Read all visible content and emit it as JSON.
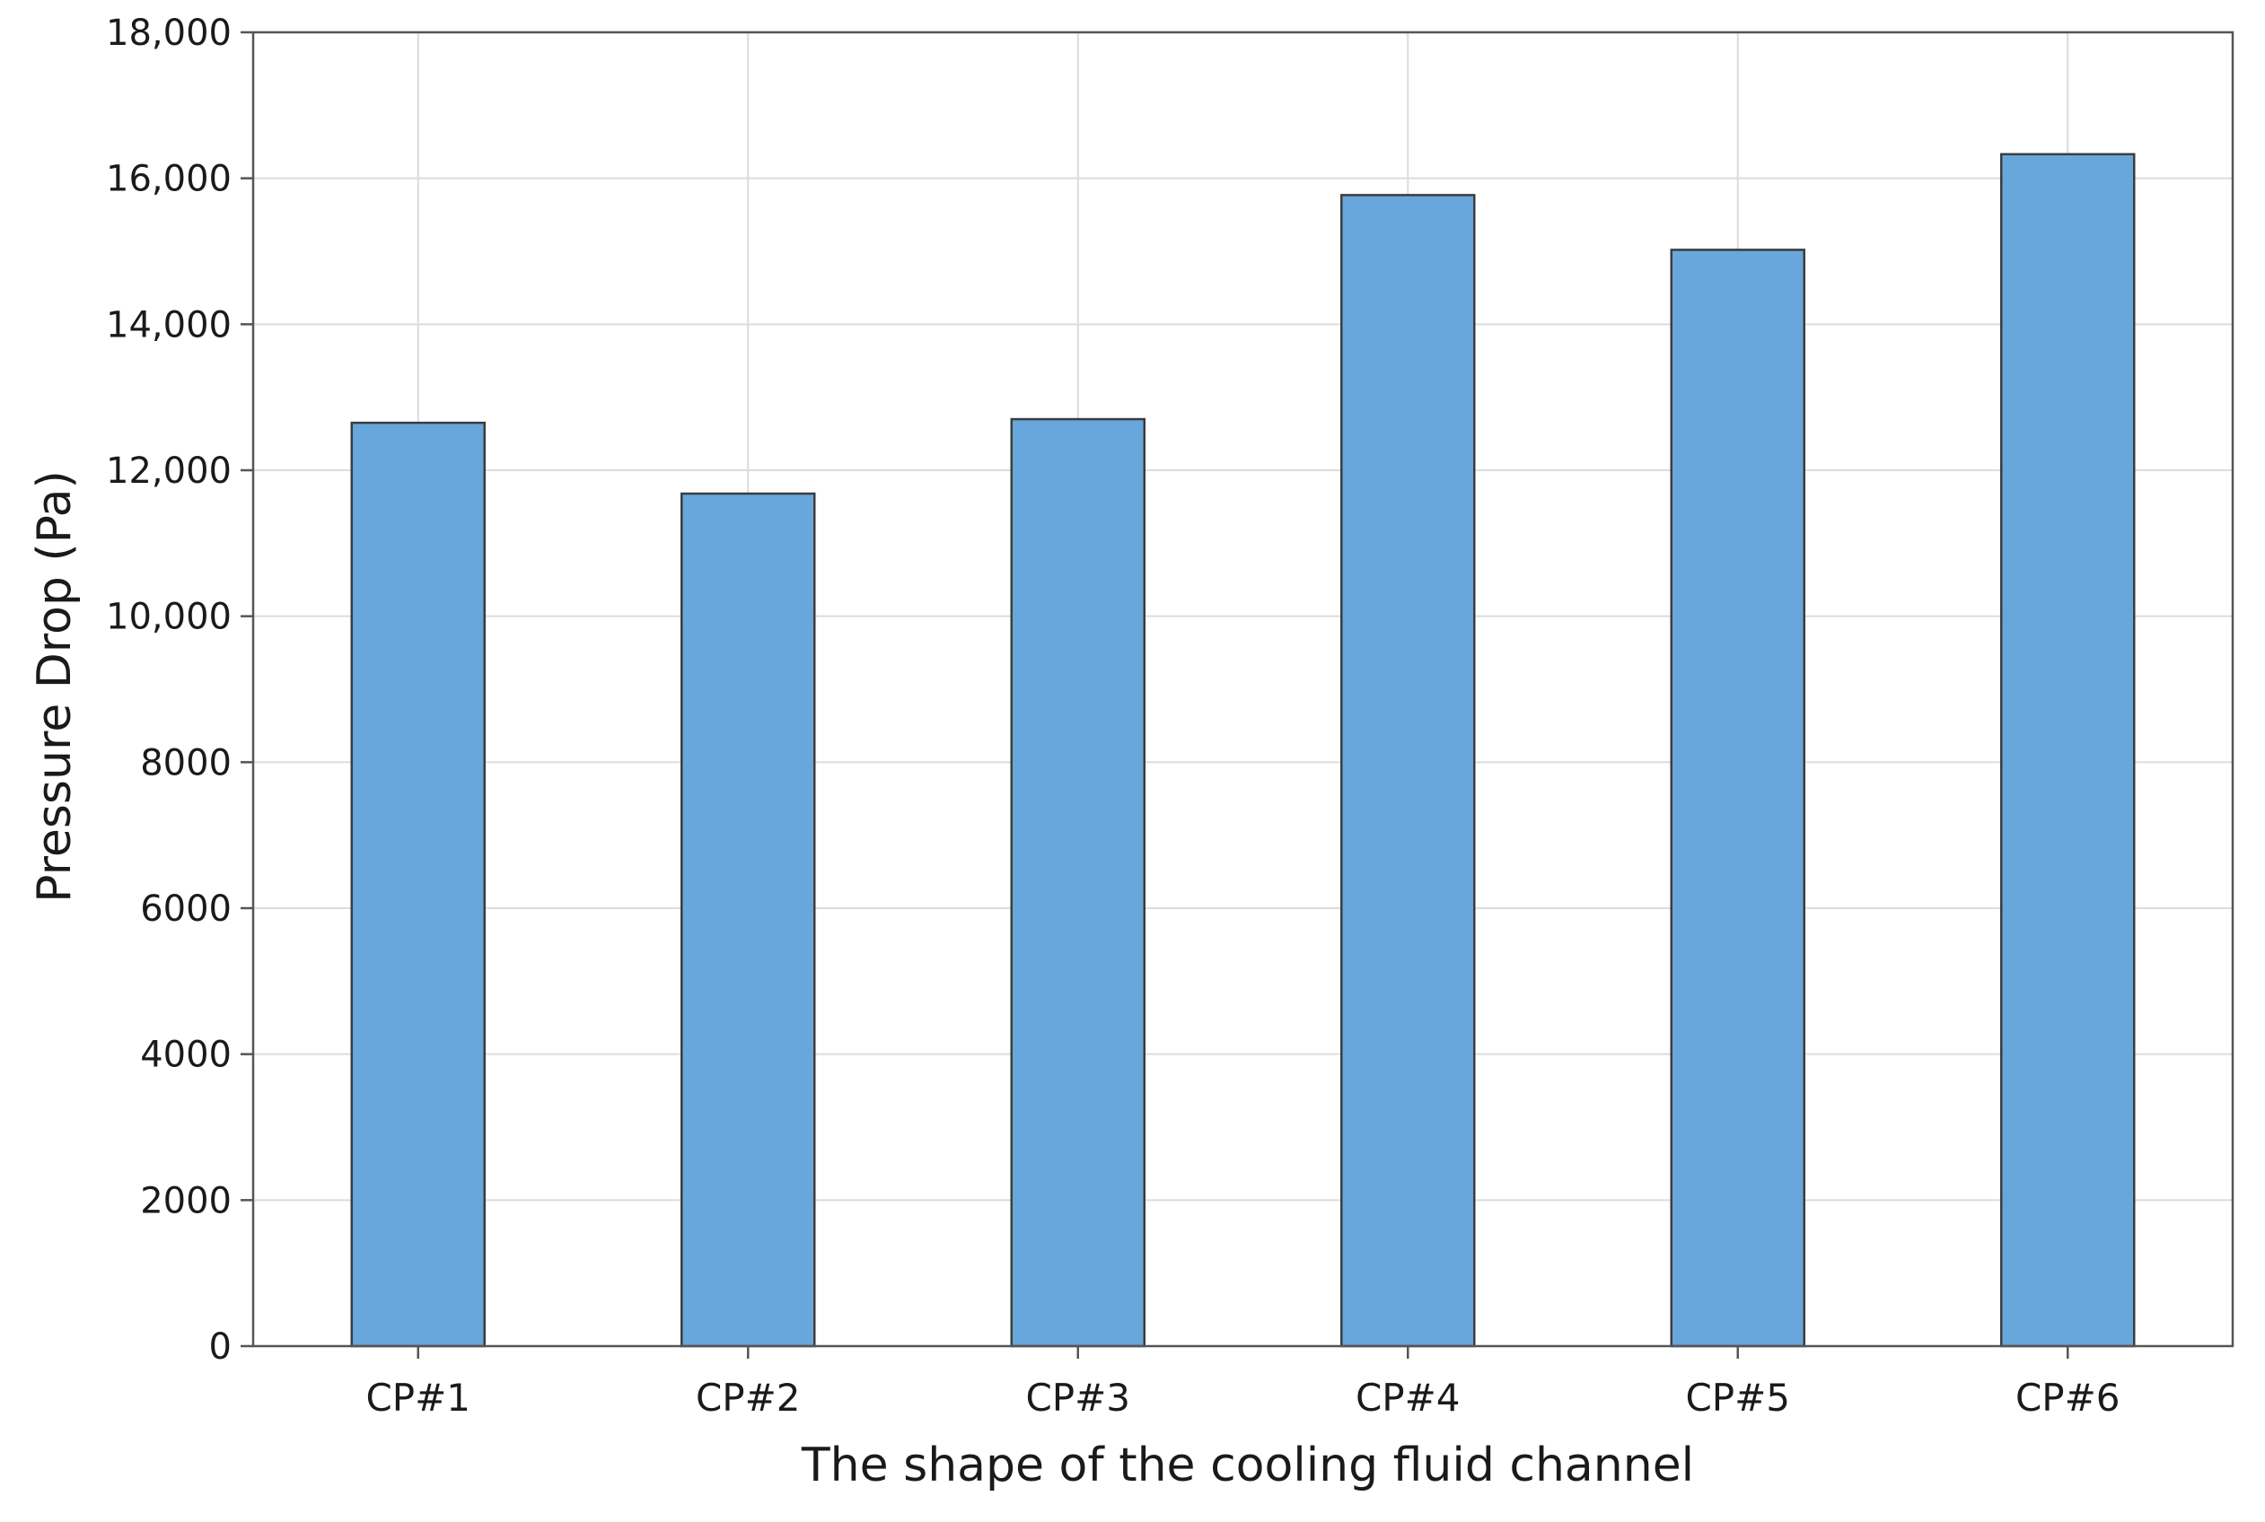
{
  "chart_data": {
    "type": "bar",
    "title": "",
    "xlabel": "The shape of the cooling fluid channel",
    "ylabel": "Pressure Drop (Pa)",
    "categories": [
      "CP#1",
      "CP#2",
      "CP#3",
      "CP#4",
      "CP#5",
      "CP#6"
    ],
    "values": [
      12650,
      11680,
      12700,
      15770,
      15020,
      16330
    ],
    "ylim": [
      0,
      18000
    ],
    "yticks": [
      0,
      2000,
      4000,
      6000,
      8000,
      10000,
      12000,
      14000,
      16000,
      18000
    ],
    "ytick_labels": [
      "0",
      "2000",
      "4000",
      "6000",
      "8000",
      "10,000",
      "12,000",
      "14,000",
      "16,000",
      "18,000"
    ],
    "grid": true,
    "legend": "none",
    "colors": {
      "bar_fill": "#67a7db",
      "bar_stroke": "#3c3c3c",
      "grid": "#dcdcdc",
      "axis": "#555555",
      "text": "#1a1a1a"
    }
  }
}
